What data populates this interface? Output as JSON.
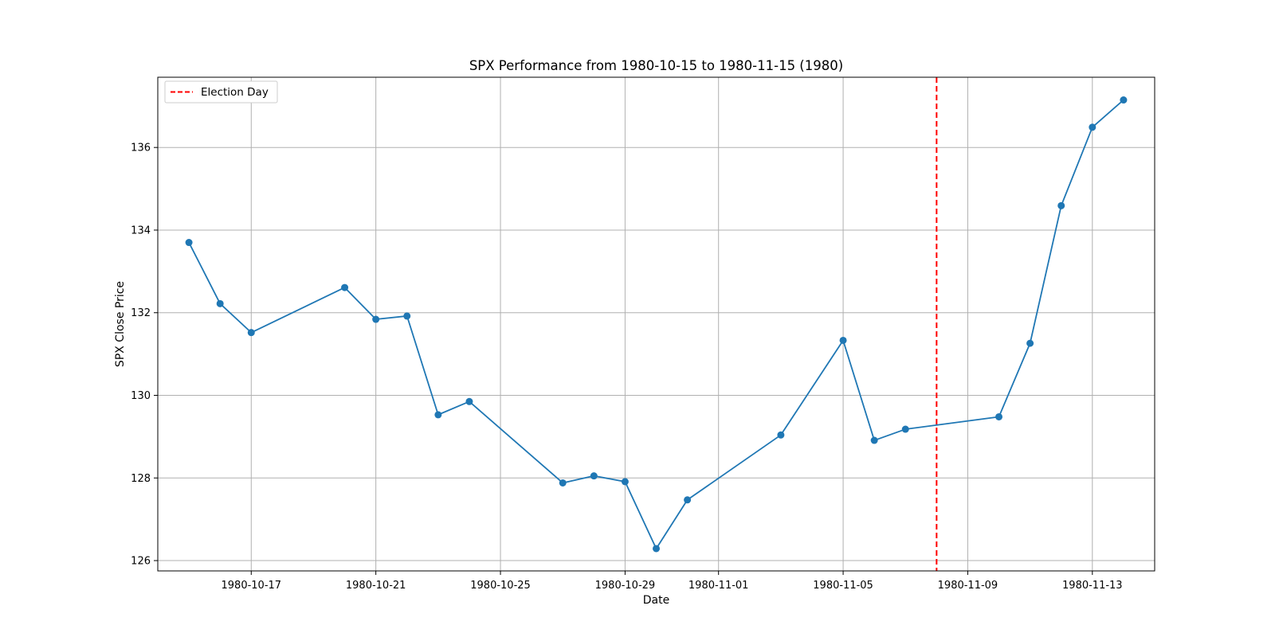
{
  "chart_data": {
    "type": "line",
    "title": "SPX Performance from 1980-10-15 to 1980-11-15 (1980)",
    "xlabel": "Date",
    "ylabel": "SPX Close Price",
    "x_axis_type": "date",
    "xlim": [
      "1980-10-14",
      "1980-11-15"
    ],
    "ylim": [
      125.75,
      137.7
    ],
    "x_ticks": [
      "1980-10-17",
      "1980-10-21",
      "1980-10-25",
      "1980-10-29",
      "1980-11-01",
      "1980-11-05",
      "1980-11-09",
      "1980-11-13"
    ],
    "y_ticks": [
      126,
      128,
      130,
      132,
      134,
      136
    ],
    "grid": true,
    "legend_position": "top-left",
    "series": [
      {
        "name": "",
        "color": "#1f77b4",
        "marker": "circle",
        "x": [
          "1980-10-15",
          "1980-10-16",
          "1980-10-17",
          "1980-10-20",
          "1980-10-21",
          "1980-10-22",
          "1980-10-23",
          "1980-10-24",
          "1980-10-27",
          "1980-10-28",
          "1980-10-29",
          "1980-10-30",
          "1980-10-31",
          "1980-11-03",
          "1980-11-05",
          "1980-11-06",
          "1980-11-07",
          "1980-11-10",
          "1980-11-11",
          "1980-11-12",
          "1980-11-13",
          "1980-11-14"
        ],
        "values": [
          133.7,
          132.22,
          131.52,
          132.61,
          131.84,
          131.92,
          129.53,
          129.85,
          127.88,
          128.05,
          127.91,
          126.29,
          127.47,
          129.04,
          131.33,
          128.91,
          129.18,
          129.48,
          131.26,
          134.59,
          136.49,
          137.15
        ]
      }
    ],
    "annotations": [
      {
        "type": "vline",
        "x": "1980-11-08",
        "label": "Election Day",
        "color": "#ff0000",
        "style": "dashed"
      }
    ]
  }
}
